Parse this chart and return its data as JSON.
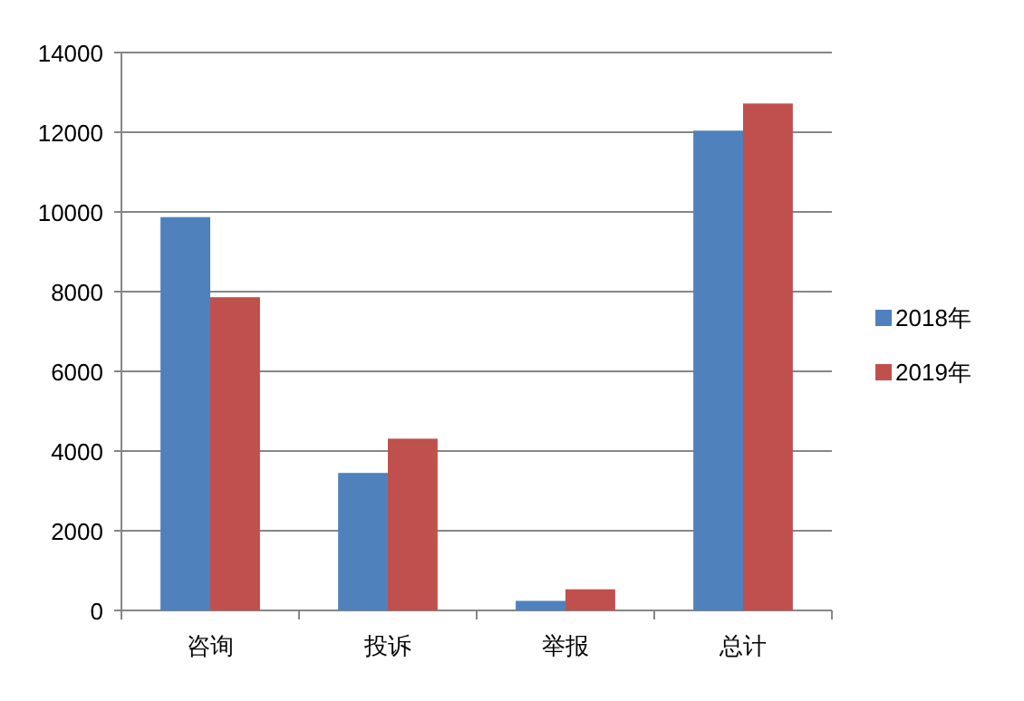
{
  "chart_data": {
    "type": "bar",
    "categories": [
      "咨询",
      "投诉",
      "举报",
      "总计"
    ],
    "series": [
      {
        "name": "2018年",
        "color": "#4f81bd",
        "values": [
          9870,
          3450,
          240,
          12040
        ]
      },
      {
        "name": "2019年",
        "color": "#c0504d",
        "values": [
          7860,
          4310,
          530,
          12720
        ]
      }
    ],
    "ylim": [
      0,
      14000
    ],
    "yticks": [
      0,
      2000,
      4000,
      6000,
      8000,
      10000,
      12000,
      14000
    ],
    "grid": "y",
    "legend": "right"
  }
}
